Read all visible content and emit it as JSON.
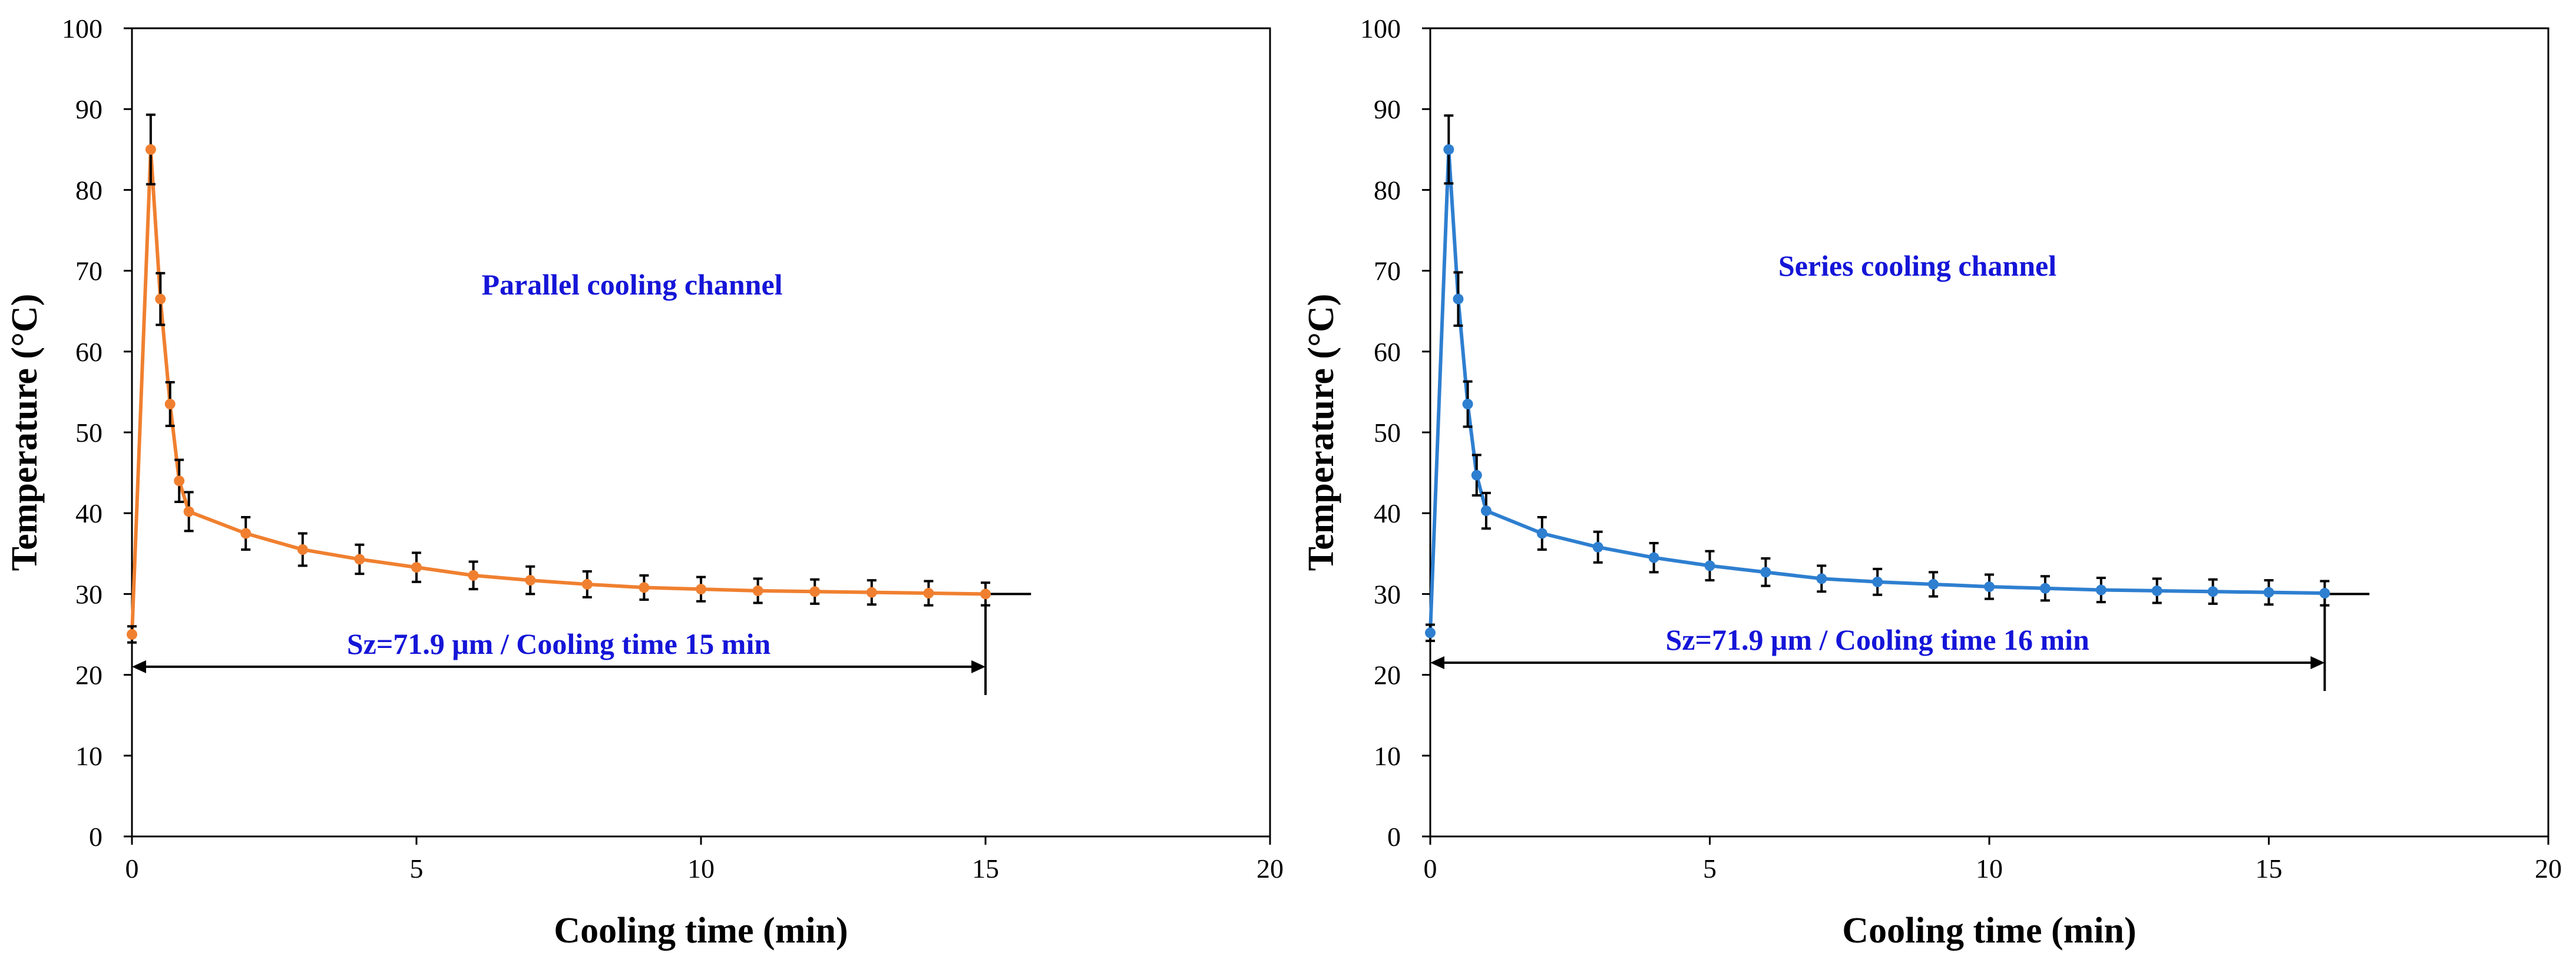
{
  "chart_data": [
    {
      "type": "line",
      "annotation": "Parallel cooling channel",
      "xlabel": "Cooling time (min)",
      "ylabel": "Temperature (°C)",
      "xlim": [
        0,
        20
      ],
      "ylim": [
        0,
        100
      ],
      "xticks": [
        0,
        5,
        10,
        15,
        20
      ],
      "yticks": [
        0,
        10,
        20,
        30,
        40,
        50,
        60,
        70,
        80,
        90,
        100
      ],
      "series": [
        {
          "name": "Parallel cooling channel",
          "color": "#F08030",
          "x": [
            0,
            0.33,
            0.5,
            0.67,
            0.83,
            1,
            2,
            3,
            4,
            5,
            6,
            7,
            8,
            9,
            10,
            11,
            12,
            13,
            14,
            15
          ],
          "y": [
            25,
            85,
            66.5,
            53.5,
            44,
            40.2,
            37.5,
            35.5,
            34.3,
            33.3,
            32.3,
            31.7,
            31.2,
            30.8,
            30.6,
            30.4,
            30.3,
            30.2,
            30.1,
            30
          ],
          "err": [
            1,
            4.3,
            3.2,
            2.7,
            2.6,
            2.4,
            2,
            2,
            1.8,
            1.8,
            1.7,
            1.7,
            1.6,
            1.5,
            1.5,
            1.5,
            1.5,
            1.5,
            1.5,
            1.4
          ]
        }
      ],
      "plateau_line": {
        "y": 30,
        "x_start": 15,
        "x_end": 15.8
      },
      "span_arrow": {
        "label": "Sz=71.9 μm / Cooling time 15 min",
        "x_start": 0,
        "x_end": 15,
        "y": 21,
        "marker_y_bottom": 17.5
      }
    },
    {
      "type": "line",
      "annotation": "Series cooling channel",
      "xlabel": "Cooling time (min)",
      "ylabel": "Temperature (°C)",
      "xlim": [
        0,
        20
      ],
      "ylim": [
        0,
        100
      ],
      "xticks": [
        0,
        5,
        10,
        15,
        20
      ],
      "yticks": [
        0,
        10,
        20,
        30,
        40,
        50,
        60,
        70,
        80,
        90,
        100
      ],
      "series": [
        {
          "name": "Series cooling channel",
          "color": "#2E7FD0",
          "x": [
            0,
            0.33,
            0.5,
            0.67,
            0.83,
            1,
            2,
            3,
            4,
            5,
            6,
            7,
            8,
            9,
            10,
            11,
            12,
            13,
            14,
            15,
            16
          ],
          "y": [
            25.2,
            85,
            66.5,
            53.5,
            44.7,
            40.3,
            37.5,
            35.8,
            34.5,
            33.5,
            32.7,
            31.9,
            31.5,
            31.2,
            30.9,
            30.7,
            30.5,
            30.4,
            30.3,
            30.2,
            30.1
          ],
          "err": [
            1,
            4.2,
            3.3,
            2.8,
            2.5,
            2.2,
            2,
            1.9,
            1.8,
            1.8,
            1.7,
            1.6,
            1.6,
            1.5,
            1.5,
            1.5,
            1.5,
            1.5,
            1.5,
            1.5,
            1.5
          ]
        }
      ],
      "plateau_line": {
        "y": 30,
        "x_start": 16,
        "x_end": 16.8
      },
      "span_arrow": {
        "label": "Sz=71.9 μm / Cooling time 16 min",
        "x_start": 0,
        "x_end": 16,
        "y": 21.5,
        "marker_y_bottom": 18
      }
    }
  ],
  "colors": {
    "axis": "#000000",
    "annotation_text": "#1515D8",
    "errorbar": "#000000"
  }
}
